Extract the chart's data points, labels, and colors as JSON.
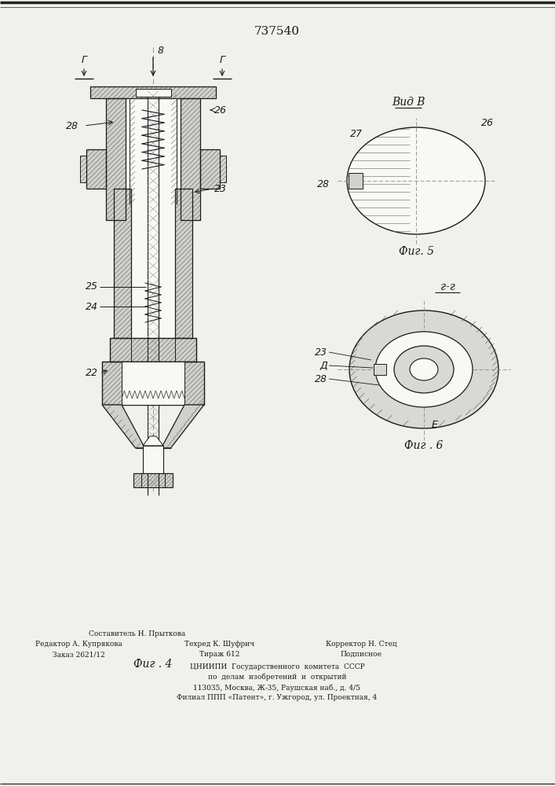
{
  "patent_number": "737540",
  "bg_color": "#f0f0ec",
  "line_color": "#1a1a1a",
  "fig4_label": "Фиг . 4",
  "fig5_label": "Фиг. 5",
  "fig6_label": "Фиг . 6",
  "view_b_label": "Вид В",
  "section_gg_label": "г-г",
  "footer_col1_line1": "Редактор А. Купрякова",
  "footer_col1_line2": "Заказ 2621/12",
  "footer_col2_line0": "Составитель Н. Прыткова",
  "footer_col2_line1": "Техред К. Шуфрич",
  "footer_col2_line2": "Тираж 612",
  "footer_col3_line1": "Корректор Н. Стец",
  "footer_col3_line2": "Подписное",
  "footer_inst1": "ЦНИИПИ  Государственного  комитета  СССР",
  "footer_inst2": "по  делам  изобретений  и  открытий",
  "footer_inst3": "113035, Москва, Ж-35, Раушская наб., д. 4/5",
  "footer_inst4": "Филиал ППП «Патент», г. Ужгород, ул. Проектная, 4"
}
